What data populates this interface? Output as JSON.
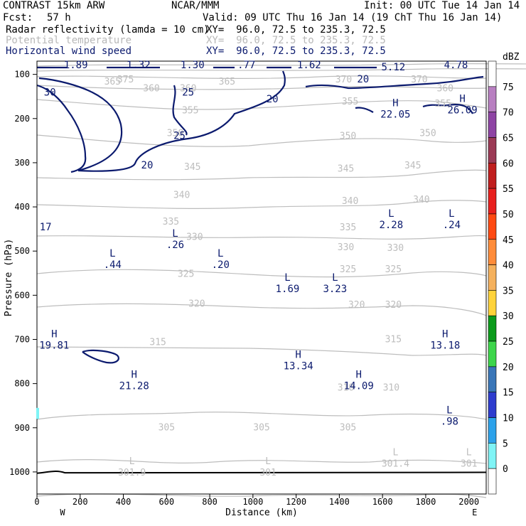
{
  "header": {
    "model": "CONTRAST 15km ARW",
    "center": "NCAR/MMM",
    "init": "Init: 00 UTC Tue 14 Jan 14",
    "fcst_label": "Fcst:",
    "fcst_value": "57 h",
    "valid": "Valid: 09 UTC Thu 16 Jan 14 (19 ChT Thu 16 Jan 14)",
    "field1_name": "Radar reflectivity (lamda = 10 cm)",
    "field1_xy": "XY=  96.0, 72.5 to 235.3, 72.5",
    "field2_name": "Potential temperature",
    "field2_xy": "XY=  96.0, 72.5 to 235.3, 72.5",
    "field3_name": "Horizontal wind speed",
    "field3_xy": "XY=  96.0, 72.5 to 235.3, 72.5"
  },
  "colors": {
    "theta": "#bdbdbd",
    "wind": "#0b1a6e",
    "frame": "#000000"
  },
  "chart_data": {
    "type": "contour-cross-section",
    "xlabel": "Distance (km)",
    "ylabel": "Pressure (hPa)",
    "xlim": [
      0,
      2080
    ],
    "ylim": [
      1050,
      70
    ],
    "x_ticks": [
      0,
      200,
      400,
      600,
      800,
      1000,
      1200,
      1400,
      1600,
      1800,
      2000
    ],
    "y_ticks": [
      100,
      200,
      300,
      400,
      500,
      600,
      700,
      800,
      900,
      1000
    ],
    "x_end_labels": {
      "left": "W",
      "right": "E"
    },
    "colorbar": {
      "unit": "dBZ",
      "levels": [
        "75",
        "70",
        "65",
        "60",
        "55",
        "50",
        "45",
        "40",
        "35",
        "30",
        "25",
        "20",
        "15",
        "10",
        "5",
        "0"
      ],
      "colors": [
        "#ffffff",
        "#b87fc1",
        "#8e44a4",
        "#9b3a55",
        "#c01e1e",
        "#e8201e",
        "#ff4a12",
        "#ff8c3a",
        "#f5b15d",
        "#ffd33a",
        "#0b9b1b",
        "#3dd64b",
        "#3a76b8",
        "#2e3cce",
        "#2ca2ea",
        "#7ff4f6",
        "#ffffff"
      ]
    },
    "theta_labels": [
      {
        "text": "375",
        "x": 410,
        "p": 110
      },
      {
        "text": "370",
        "x": 1420,
        "p": 110
      },
      {
        "text": "370",
        "x": 1770,
        "p": 110
      },
      {
        "text": "365",
        "x": 350,
        "p": 115
      },
      {
        "text": "360",
        "x": 530,
        "p": 130
      },
      {
        "text": "360",
        "x": 700,
        "p": 130
      },
      {
        "text": "360",
        "x": 1890,
        "p": 130
      },
      {
        "text": "365",
        "x": 880,
        "p": 115
      },
      {
        "text": "355",
        "x": 710,
        "p": 180
      },
      {
        "text": "355",
        "x": 1450,
        "p": 160
      },
      {
        "text": "355",
        "x": 1880,
        "p": 165
      },
      {
        "text": "350",
        "x": 640,
        "p": 232
      },
      {
        "text": "350",
        "x": 1440,
        "p": 238
      },
      {
        "text": "350",
        "x": 1810,
        "p": 232
      },
      {
        "text": "345",
        "x": 720,
        "p": 308
      },
      {
        "text": "345",
        "x": 1430,
        "p": 312
      },
      {
        "text": "345",
        "x": 1740,
        "p": 305
      },
      {
        "text": "340",
        "x": 670,
        "p": 372
      },
      {
        "text": "340",
        "x": 1450,
        "p": 385
      },
      {
        "text": "340",
        "x": 1780,
        "p": 382
      },
      {
        "text": "335",
        "x": 620,
        "p": 432
      },
      {
        "text": "335",
        "x": 1440,
        "p": 445
      },
      {
        "text": "330",
        "x": 730,
        "p": 467
      },
      {
        "text": "330",
        "x": 1430,
        "p": 490
      },
      {
        "text": "330",
        "x": 1660,
        "p": 492
      },
      {
        "text": "325",
        "x": 690,
        "p": 550
      },
      {
        "text": "325",
        "x": 1440,
        "p": 540
      },
      {
        "text": "325",
        "x": 1650,
        "p": 540
      },
      {
        "text": "320",
        "x": 740,
        "p": 618
      },
      {
        "text": "320",
        "x": 1480,
        "p": 620
      },
      {
        "text": "320",
        "x": 1650,
        "p": 620
      },
      {
        "text": "315",
        "x": 560,
        "p": 705
      },
      {
        "text": "315",
        "x": 1650,
        "p": 698
      },
      {
        "text": "310",
        "x": 1430,
        "p": 808
      },
      {
        "text": "310",
        "x": 1640,
        "p": 808
      },
      {
        "text": "305",
        "x": 600,
        "p": 898
      },
      {
        "text": "305",
        "x": 1040,
        "p": 898
      },
      {
        "text": "305",
        "x": 1440,
        "p": 898
      }
    ],
    "theta_extrema": [
      {
        "sym": "L",
        "value": "301.9",
        "x": 440,
        "p": 995
      },
      {
        "sym": "L",
        "value": "301",
        "x": 1070,
        "p": 995
      },
      {
        "sym": "L",
        "value": "301.4",
        "x": 1660,
        "p": 975
      },
      {
        "sym": "L",
        "value": "301",
        "x": 2000,
        "p": 975
      }
    ],
    "wind_labels": [
      {
        "text": "1.89",
        "x": 180,
        "p": 78
      },
      {
        "text": "1.32",
        "x": 470,
        "p": 78
      },
      {
        "text": "1.30",
        "x": 720,
        "p": 78
      },
      {
        "text": ".77",
        "x": 970,
        "p": 78
      },
      {
        "text": "1.62",
        "x": 1260,
        "p": 78
      },
      {
        "text": "5.12",
        "x": 1650,
        "p": 83
      },
      {
        "text": "4.78",
        "x": 1940,
        "p": 78
      },
      {
        "text": "30",
        "x": 60,
        "p": 140
      },
      {
        "text": "25",
        "x": 700,
        "p": 140
      },
      {
        "text": "20",
        "x": 1510,
        "p": 110
      },
      {
        "text": "20",
        "x": 1090,
        "p": 155
      },
      {
        "text": "25",
        "x": 660,
        "p": 238
      },
      {
        "text": "20",
        "x": 510,
        "p": 305
      },
      {
        "text": "17",
        "x": 40,
        "p": 445
      }
    ],
    "wind_extrema": [
      {
        "sym": "H",
        "value": "22.05",
        "x": 1660,
        "p": 185
      },
      {
        "sym": "H",
        "value": "26.09",
        "x": 1970,
        "p": 175
      },
      {
        "sym": "L",
        "value": "2.28",
        "x": 1640,
        "p": 435
      },
      {
        "sym": "L",
        "value": ".24",
        "x": 1920,
        "p": 435
      },
      {
        "sym": "L",
        "value": ".26",
        "x": 640,
        "p": 480
      },
      {
        "sym": "L",
        "value": ".44",
        "x": 350,
        "p": 525
      },
      {
        "sym": "L",
        "value": ".20",
        "x": 850,
        "p": 525
      },
      {
        "sym": "L",
        "value": "1.69",
        "x": 1160,
        "p": 580
      },
      {
        "sym": "L",
        "value": "3.23",
        "x": 1380,
        "p": 580
      },
      {
        "sym": "H",
        "value": "19.81",
        "x": 80,
        "p": 708
      },
      {
        "sym": "H",
        "value": "13.18",
        "x": 1890,
        "p": 708
      },
      {
        "sym": "H",
        "value": "13.34",
        "x": 1210,
        "p": 755
      },
      {
        "sym": "H",
        "value": "14.09",
        "x": 1490,
        "p": 800
      },
      {
        "sym": "H",
        "value": "21.28",
        "x": 450,
        "p": 800
      },
      {
        "sym": "L",
        "value": ".98",
        "x": 1910,
        "p": 880
      }
    ]
  }
}
